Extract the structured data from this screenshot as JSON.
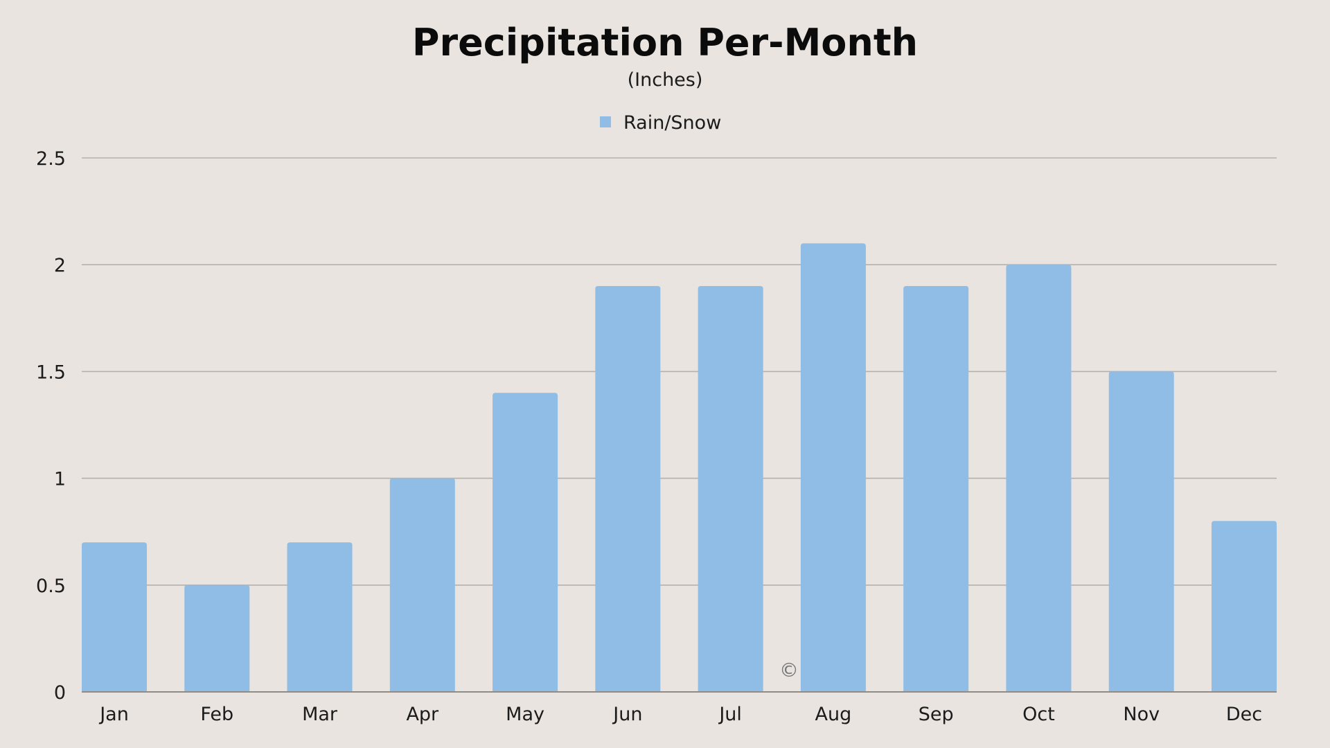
{
  "colors": {
    "background": "#e9e4df",
    "bar": "#8fbde6",
    "grid": "#b4b0ac",
    "text": "#111111"
  },
  "watermark": "©",
  "chart_data": {
    "type": "bar",
    "title": "Precipitation Per-Month",
    "subtitle": "(Inches)",
    "xlabel": "",
    "ylabel": "",
    "categories": [
      "Jan",
      "Feb",
      "Mar",
      "Apr",
      "May",
      "Jun",
      "Jul",
      "Aug",
      "Sep",
      "Oct",
      "Nov",
      "Dec"
    ],
    "series": [
      {
        "name": "Rain/Snow",
        "values": [
          0.7,
          0.5,
          0.7,
          1.0,
          1.4,
          1.9,
          1.9,
          2.1,
          1.9,
          2.0,
          1.5,
          0.8
        ]
      }
    ],
    "yticks": [
      "0",
      "0.5",
      "1",
      "1.5",
      "2",
      "2.5"
    ],
    "ylim": [
      0,
      2.5
    ],
    "grid": true,
    "legend": "top-center"
  }
}
